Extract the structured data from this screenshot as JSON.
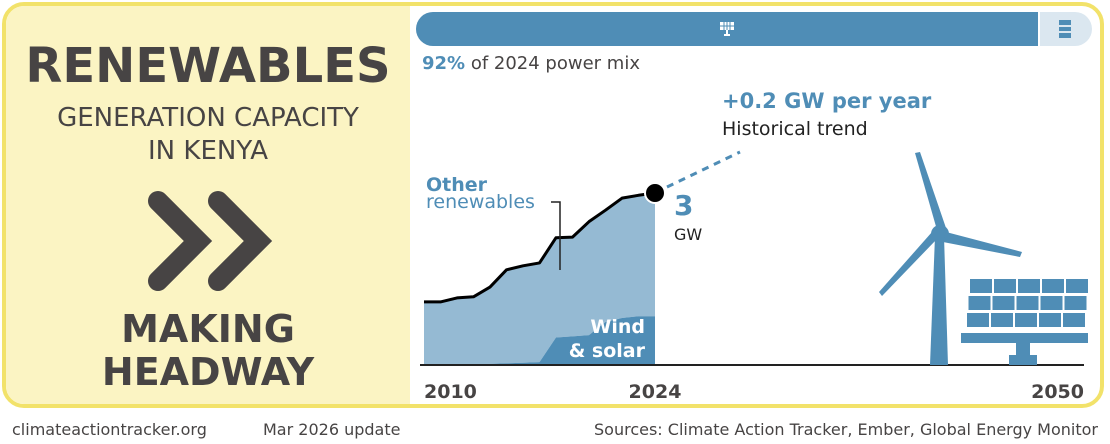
{
  "panel": {
    "title": "RENEWABLES",
    "subtitle_line1": "GENERATION CAPACITY",
    "subtitle_line2": "IN KENYA",
    "rating_icon": "double-chevron-right-icon",
    "rating_line1": "MAKING",
    "rating_line2": "HEADWAY",
    "text_color": "#474444",
    "background": "#fbf4c3",
    "border_color": "#f2e26a"
  },
  "power_mix": {
    "share_percent": 92,
    "share_label": "92%",
    "suffix_label": "of 2024 power mix",
    "renewable_icon": "solar-panel-icon",
    "fossil_icon": "oil-barrel-icon",
    "renewable_color": "#4f8db6",
    "fossil_color": "#dbe7f0"
  },
  "trend": {
    "value_label": "+0.2 GW per year",
    "caption": "Historical trend"
  },
  "current": {
    "value": "3",
    "unit": "GW"
  },
  "illustration": {
    "wind_icon": "wind-turbine-icon",
    "solar_icon": "solar-panel-icon"
  },
  "chart_data": {
    "type": "area",
    "title": "Renewables generation capacity in Kenya",
    "xlabel": "",
    "ylabel": "GW",
    "x": [
      2010,
      2011,
      2012,
      2013,
      2014,
      2015,
      2016,
      2017,
      2018,
      2019,
      2020,
      2021,
      2022,
      2023,
      2024
    ],
    "xlim": [
      2010,
      2050
    ],
    "ylim": [
      0,
      3.5
    ],
    "x_tick_labels": [
      "2010",
      "2024",
      "2050"
    ],
    "x_ticks": [
      2010,
      2024,
      2050
    ],
    "grid": false,
    "series": [
      {
        "name": "Wind & solar",
        "label_line1": "Wind",
        "label_line2": "& solar",
        "color": "#4f8db6",
        "values": [
          0.0,
          0.0,
          0.0,
          0.01,
          0.02,
          0.03,
          0.04,
          0.05,
          0.48,
          0.5,
          0.52,
          0.75,
          0.82,
          0.85,
          0.85
        ]
      },
      {
        "name": "Other renewables",
        "label_line1": "Other",
        "label_line2": "renewables",
        "color": "#95bad3",
        "values": [
          1.1,
          1.1,
          1.17,
          1.18,
          1.34,
          1.63,
          1.69,
          1.73,
          1.74,
          1.73,
          1.98,
          1.95,
          2.09,
          2.11,
          2.15
        ]
      }
    ],
    "total": [
      1.1,
      1.1,
      1.17,
      1.19,
      1.36,
      1.66,
      1.73,
      1.78,
      2.22,
      2.23,
      2.5,
      2.7,
      2.91,
      2.96,
      3.0
    ],
    "total_line_color": "#000000",
    "trend_rate_gw_per_year": 0.2,
    "annotations": [
      "+0.2 GW per year",
      "Historical trend",
      "3 GW"
    ]
  },
  "footer": {
    "website": "climateactiontracker.org",
    "update": "Mar 2026 update",
    "sources": "Sources: Climate Action Tracker, Ember, Global Energy Monitor"
  }
}
